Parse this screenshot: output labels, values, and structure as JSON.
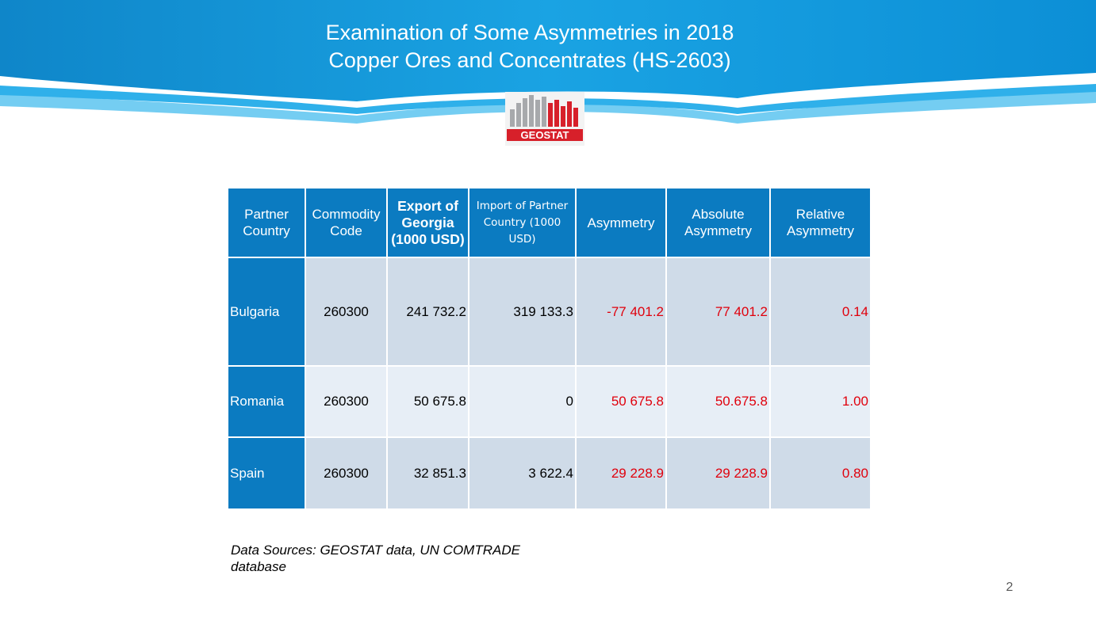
{
  "slide": {
    "title_line1": "Examination of Some Asymmetries in 2018",
    "title_line2": "Copper Ores and Concentrates (HS-2603)",
    "logo_text": "GEOSTAT",
    "source": "Data Sources: GEOSTAT data, UN COMTRADE database",
    "page_number": "2"
  },
  "colors": {
    "header_blue": "#0b7bc1",
    "banner_blue": "#1ba1e2",
    "row_light": "#e7eef6",
    "row_dark": "#cfdbe8",
    "negative_red": "#e0000c"
  },
  "table": {
    "headers": [
      "Partner Country",
      "Commodity Code",
      "Export of Georgia (1000 USD)",
      "Import of Partner Country (1000 USD)",
      "Asymmetry",
      "Absolute Asymmetry",
      "Relative Asymmetry"
    ],
    "rows": [
      {
        "country": "Bulgaria",
        "code": "260300",
        "export": "241 732.2",
        "import": "319 133.3",
        "asymmetry": "-77 401.2",
        "absolute": "77 401.2",
        "relative": "0.14"
      },
      {
        "country": "Romania",
        "code": "260300",
        "export": "50 675.8",
        "import": "0",
        "asymmetry": "50 675.8",
        "absolute": "50.675.8",
        "relative": "1.00"
      },
      {
        "country": "Spain",
        "code": "260300",
        "export": "32 851.3",
        "import": "3 622.4",
        "asymmetry": "29 228.9",
        "absolute": "29 228.9",
        "relative": "0.80"
      }
    ]
  }
}
